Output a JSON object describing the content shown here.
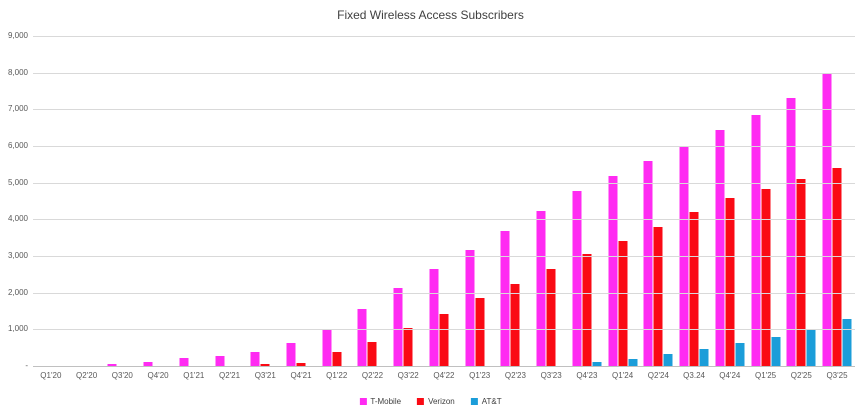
{
  "title": "Fixed Wireless Access Subscribers",
  "colors": {
    "t_mobile": "#ff2bf2",
    "verizon": "#fa0a14",
    "att": "#1b9dd9",
    "gridline": "#d9d9d9",
    "axis_line": "#c0c0c0",
    "title_text": "#3f3f3f",
    "axis_text": "#595959"
  },
  "legend": [
    "T-Mobile",
    "Verizon",
    "AT&T"
  ],
  "chart_data": {
    "type": "bar",
    "title": "Fixed Wireless Access Subscribers",
    "xlabel": "",
    "ylabel": "",
    "ylim": [
      0,
      9000
    ],
    "grid": true,
    "legend_position": "bottom-center",
    "y_ticks": [
      {
        "value": 9000,
        "label": "9,000"
      },
      {
        "value": 8000,
        "label": "8,000"
      },
      {
        "value": 7000,
        "label": "7,000"
      },
      {
        "value": 6000,
        "label": "6,000"
      },
      {
        "value": 5000,
        "label": "5,000"
      },
      {
        "value": 4000,
        "label": "4,000"
      },
      {
        "value": 3000,
        "label": "3,000"
      },
      {
        "value": 2000,
        "label": "2,000"
      },
      {
        "value": 1000,
        "label": "1,000"
      },
      {
        "value": 0,
        "label": "-"
      }
    ],
    "categories": [
      "Q1'20",
      "Q2'20",
      "Q3'20",
      "Q4'20",
      "Q1'21",
      "Q2'21",
      "Q3'21",
      "Q4'21",
      "Q1'22",
      "Q2'22",
      "Q3'22",
      "Q4'22",
      "Q1'23",
      "Q2'23",
      "Q3'23",
      "Q4'23",
      "Q1'24",
      "Q2'24",
      "Q3.24",
      "Q4'24",
      "Q1'25",
      "Q2'25",
      "Q3'25"
    ],
    "series": [
      {
        "name": "T-Mobile",
        "color": "#ff2bf2",
        "values": [
          0,
          0,
          50,
          100,
          220,
          280,
          390,
          640,
          985,
          1545,
          2120,
          2645,
          3170,
          3670,
          4240,
          4780,
          5180,
          5590,
          6000,
          6440,
          6855,
          7300,
          8000
        ]
      },
      {
        "name": "Verizon",
        "color": "#fa0a14",
        "values": [
          0,
          0,
          0,
          0,
          0,
          0,
          55,
          80,
          380,
          650,
          1050,
          1430,
          1850,
          2240,
          2650,
          3050,
          3410,
          3790,
          4200,
          4570,
          4830,
          5100,
          5400
        ]
      },
      {
        "name": "AT&T",
        "color": "#1b9dd9",
        "values": [
          0,
          0,
          0,
          0,
          0,
          0,
          0,
          0,
          0,
          0,
          0,
          0,
          0,
          0,
          0,
          100,
          200,
          320,
          455,
          620,
          780,
          1000,
          1280
        ]
      }
    ]
  }
}
